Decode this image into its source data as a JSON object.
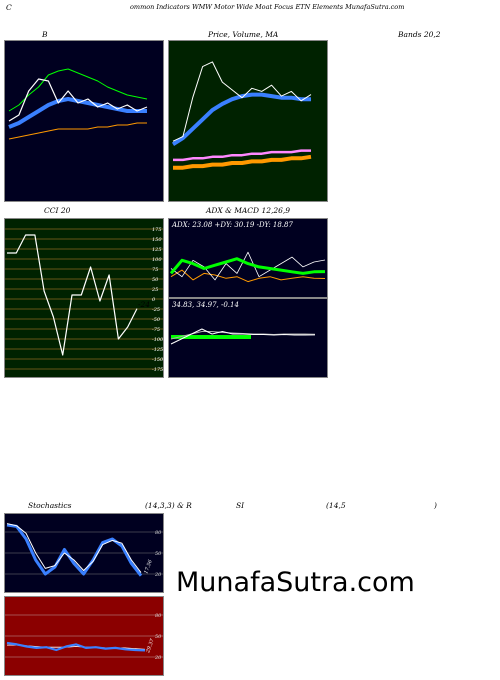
{
  "header": {
    "c": "C",
    "rest": "ommon  Indicators WMW Motor Wide   Moat Focus ETN  Elements MunafaSutra.com"
  },
  "labels": {
    "b": "B",
    "price": "Price,  Volume,  MA",
    "bands": "Bands 20,2",
    "cci": "CCI 20",
    "adx": "ADX  & MACD 12,26,9",
    "stoch": "Stochastics",
    "stoch_params": "(14,3,3) & R",
    "si": "SI",
    "rsi_params": "(14,5",
    "rsi_close": ")"
  },
  "readouts": {
    "cci_value": "-24",
    "adx_line": "ADX: 23.08  +DY: 30.19 -DY: 18.87",
    "macd_line": "34.83,  34.97,  -0.14",
    "stoch_value": "17.56",
    "rsi_value": "29.37"
  },
  "brand": "MunafaSutra.com",
  "colors": {
    "dark_bg": "#000020",
    "green_bg": "#002200",
    "rsi_bg": "#8b0000",
    "blue": "#3a80ff",
    "green": "#00ff00",
    "orange": "#ff9900",
    "white": "#ffffff"
  },
  "chart_data": [
    {
      "type": "line",
      "title": "B",
      "subtitle": "Bands 20,2",
      "series": [
        {
          "values": [
            100,
            103,
            108,
            112,
            118,
            120,
            121,
            119,
            117,
            115,
            112,
            110,
            108,
            107,
            106
          ]
        },
        {
          "values": [
            92,
            94,
            97,
            100,
            103,
            105,
            106,
            105,
            104,
            103,
            102,
            101,
            100,
            100,
            100
          ]
        },
        {
          "values": [
            86,
            87,
            88,
            89,
            90,
            91,
            91,
            91,
            91,
            92,
            92,
            93,
            93,
            94,
            94
          ]
        },
        {
          "values": [
            95,
            98,
            110,
            116,
            115,
            104,
            110,
            104,
            106,
            102,
            104,
            101,
            103,
            100,
            102
          ]
        }
      ]
    },
    {
      "type": "line",
      "title": "Price,  Volume,  MA",
      "series": [
        {
          "values": [
            72,
            75,
            100,
            120,
            123,
            110,
            105,
            100,
            106,
            104,
            108,
            101,
            104,
            98,
            102
          ]
        },
        {
          "values": [
            70,
            74,
            80,
            86,
            92,
            96,
            99,
            101,
            102,
            102,
            101,
            100,
            100,
            99,
            99
          ]
        },
        {
          "values": [
            60,
            60,
            61,
            61,
            62,
            62,
            63,
            63,
            64,
            64,
            65,
            65,
            65,
            66,
            66
          ]
        },
        {
          "values": [
            55,
            55,
            56,
            56,
            57,
            57,
            58,
            58,
            59,
            59,
            60,
            60,
            61,
            61,
            62
          ]
        }
      ]
    },
    {
      "type": "line",
      "title": "CCI 20",
      "ylim": [
        -175,
        175
      ],
      "yticks": [
        175,
        150,
        125,
        100,
        75,
        50,
        25,
        0,
        -25,
        -50,
        -75,
        -100,
        -125,
        -150,
        -175
      ],
      "values": [
        115,
        115,
        160,
        160,
        20,
        -45,
        -140,
        10,
        10,
        80,
        -5,
        60,
        -100,
        -70,
        -24
      ]
    },
    {
      "type": "line",
      "title": "ADX  & MACD 12,26,9",
      "series": [
        {
          "values": [
            22,
            30,
            28,
            25,
            27,
            29,
            31,
            28,
            26,
            25,
            24,
            23,
            22,
            23,
            23.08
          ]
        },
        {
          "values": [
            25,
            20,
            30,
            26,
            18,
            28,
            22,
            35,
            20,
            24,
            28,
            32,
            26,
            29,
            30.19
          ]
        },
        {
          "values": [
            20,
            24,
            18,
            22,
            21,
            19,
            20,
            17,
            19,
            20,
            18,
            19,
            20,
            19,
            18.87
          ]
        },
        {
          "values": [
            33,
            34,
            35,
            36,
            35,
            35.5,
            35,
            35,
            34.9,
            34.9,
            34.8,
            34.9,
            34.8,
            34.8,
            34.83
          ]
        },
        {
          "values": [
            34,
            34.5,
            35,
            35.5,
            35.5,
            35.3,
            35.2,
            35.1,
            35,
            35,
            34.9,
            35,
            35,
            35,
            34.97
          ]
        }
      ]
    },
    {
      "type": "line",
      "title": "Stochastics",
      "subtitle": "(14,3,3)",
      "ylim": [
        0,
        100
      ],
      "yticks": [
        80,
        50,
        20
      ],
      "series": [
        {
          "values": [
            90,
            88,
            70,
            40,
            20,
            30,
            55,
            35,
            20,
            40,
            65,
            70,
            60,
            35,
            17.56
          ]
        },
        {
          "values": [
            92,
            89,
            78,
            50,
            28,
            32,
            50,
            40,
            25,
            38,
            62,
            68,
            64,
            40,
            22
          ]
        }
      ]
    },
    {
      "type": "line",
      "title": "RSI",
      "subtitle": "(14,5",
      "ylim": [
        0,
        100
      ],
      "yticks": [
        80,
        50,
        20
      ],
      "series": [
        {
          "values": [
            40,
            38,
            35,
            33,
            34,
            30,
            35,
            38,
            33,
            34,
            32,
            33,
            31,
            30,
            29.37
          ]
        },
        {
          "values": [
            37,
            37,
            36,
            35,
            34,
            34,
            34,
            35,
            34,
            34,
            33,
            33,
            33,
            32,
            31
          ]
        }
      ]
    }
  ]
}
